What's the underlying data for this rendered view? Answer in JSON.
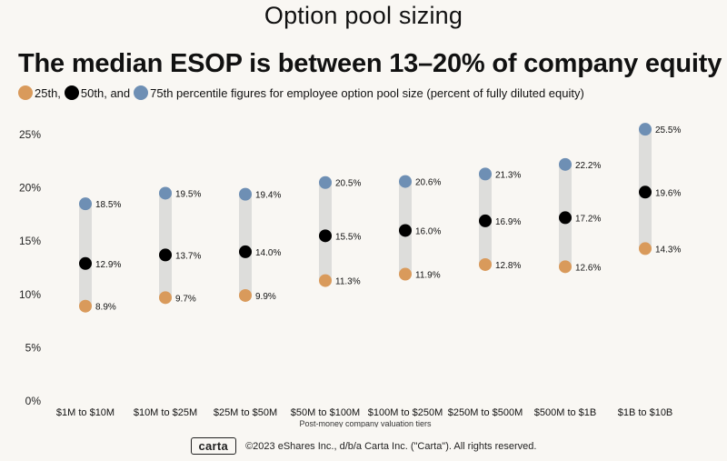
{
  "page_title": "Option pool sizing",
  "colors": {
    "p25": "#d99a5b",
    "p50": "#000000",
    "p75": "#6e8fb4",
    "range": "#dddddb",
    "background": "#f9f7f3"
  },
  "legend": {
    "p25": "25th,",
    "p50": "50th, and",
    "p75": "75th percentile figures for employee option pool size (percent of fully diluted equity)"
  },
  "footer": {
    "logo": "carta",
    "copyright": "©2023 eShares Inc., d/b/a Carta Inc. (\"Carta\"). All rights reserved."
  },
  "chart_data": {
    "type": "dot-range",
    "title": "The median ESOP is between 13–20% of company equity",
    "xlabel": "Post-money company valuation tiers",
    "ylabel": "",
    "ylim": [
      0,
      27
    ],
    "yticks": [
      0,
      5,
      10,
      15,
      20,
      25
    ],
    "ytick_labels": [
      "0%",
      "5%",
      "10%",
      "15%",
      "20%",
      "25%"
    ],
    "grid": false,
    "categories": [
      "$1M to $10M",
      "$10M to $25M",
      "$25M to $50M",
      "$50M to $100M",
      "$100M to $250M",
      "$250M to $500M",
      "$500M to $1B",
      "$1B to $10B"
    ],
    "series": [
      {
        "name": "25th",
        "values": [
          8.9,
          9.7,
          9.9,
          11.3,
          11.9,
          12.8,
          12.6,
          14.3
        ]
      },
      {
        "name": "50th",
        "values": [
          12.9,
          13.7,
          14.0,
          15.5,
          16.0,
          16.9,
          17.2,
          19.6
        ]
      },
      {
        "name": "75th",
        "values": [
          18.5,
          19.5,
          19.4,
          20.5,
          20.6,
          21.3,
          22.2,
          25.5
        ]
      }
    ]
  }
}
